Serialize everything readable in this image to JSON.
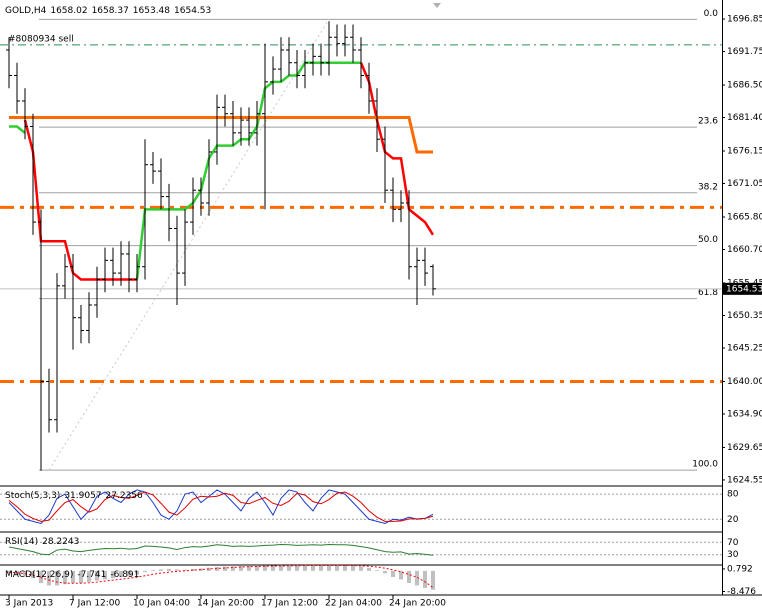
{
  "chart_data": [
    {
      "type": "ohlc",
      "symbol": "GOLD,H4",
      "open": [
        1692,
        1688,
        1684,
        1680,
        1665,
        1640,
        1634,
        1655,
        1658,
        1650,
        1648,
        1652,
        1656,
        1659,
        1657,
        1660,
        1656,
        1658,
        1674,
        1673,
        1669,
        1664,
        1657,
        1665,
        1670,
        1668,
        1676,
        1683,
        1682,
        1679,
        1681,
        1679,
        1682,
        1687,
        1689,
        1692,
        1690,
        1688,
        1690,
        1691,
        1690,
        1694,
        1693,
        1694,
        1692,
        1688,
        1684,
        1678,
        1670,
        1667,
        1668,
        1658,
        1659,
        1658.02
      ],
      "high": [
        1694,
        1690,
        1686,
        1682,
        1667,
        1642,
        1657,
        1660,
        1660,
        1652,
        1654,
        1658,
        1661,
        1661,
        1662,
        1662,
        1660,
        1678,
        1676,
        1675,
        1671,
        1666,
        1667,
        1672,
        1672,
        1678,
        1685,
        1685,
        1684,
        1683,
        1683,
        1684,
        1693,
        1691,
        1694,
        1694,
        1692,
        1692,
        1693,
        1693,
        1696.5,
        1696,
        1696,
        1696,
        1694,
        1690,
        1686,
        1680,
        1672,
        1670,
        1670,
        1661,
        1661,
        1658.37
      ],
      "low": [
        1686,
        1682,
        1678,
        1663,
        1626,
        1632,
        1632,
        1653,
        1645,
        1646,
        1646,
        1650,
        1654,
        1655,
        1655,
        1654,
        1654,
        1656,
        1671,
        1667,
        1662,
        1652,
        1655,
        1663,
        1666,
        1666,
        1674,
        1680,
        1677,
        1677,
        1677,
        1677,
        1667,
        1685,
        1687,
        1688,
        1686,
        1686,
        1688,
        1688,
        1688,
        1691,
        1691,
        1690,
        1686,
        1682,
        1676,
        1668,
        1665,
        1665,
        1656,
        1652,
        1655,
        1653.48
      ],
      "close": [
        1688,
        1684,
        1680,
        1665,
        1640,
        1634,
        1655,
        1658,
        1650,
        1648,
        1652,
        1656,
        1659,
        1657,
        1660,
        1656,
        1658,
        1674,
        1673,
        1669,
        1664,
        1657,
        1665,
        1670,
        1668,
        1676,
        1683,
        1682,
        1679,
        1681,
        1679,
        1682,
        1687,
        1689,
        1692,
        1690,
        1688,
        1690,
        1691,
        1690,
        1694,
        1693,
        1694,
        1692,
        1688,
        1684,
        1678,
        1670,
        1667,
        1668,
        1658,
        1659,
        1657,
        1654.53
      ],
      "bar_color": "#000000",
      "lines": [
        {
          "color": "#32cd32",
          "values": [
            1680,
            1680,
            1679,
            null,
            null,
            null,
            null,
            null,
            null,
            null,
            null,
            null,
            null,
            null,
            null,
            null,
            1656,
            1667,
            1667,
            1667,
            1667,
            1667,
            1667,
            1668,
            1670,
            1675,
            1677,
            1677,
            1677,
            1678,
            1678,
            1680,
            1686,
            1687,
            1687,
            1688,
            1688,
            1690,
            1690,
            1690,
            1690,
            1690,
            1690,
            1690,
            1690,
            null,
            null,
            null,
            null,
            null,
            null,
            null,
            null,
            null
          ]
        },
        {
          "color": "#ff0000",
          "values": [
            null,
            null,
            1681,
            1676,
            1662,
            1662,
            1662,
            1662,
            1657,
            1656,
            1656,
            1656,
            1656,
            1656,
            1656,
            1656,
            1656,
            null,
            null,
            null,
            null,
            null,
            null,
            null,
            null,
            null,
            null,
            null,
            null,
            null,
            null,
            null,
            null,
            null,
            null,
            null,
            null,
            null,
            null,
            null,
            null,
            null,
            null,
            null,
            1690,
            1687,
            1681,
            1676,
            1675,
            1675,
            1667,
            1666,
            1665,
            1663
          ]
        },
        {
          "color": "#ff6a00",
          "values": [
            1681.4,
            1681.4,
            1681.4,
            1681.4,
            1681.4,
            1681.4,
            1681.4,
            1681.4,
            1681.4,
            1681.4,
            1681.4,
            1681.4,
            1681.4,
            1681.4,
            1681.4,
            1681.4,
            1681.4,
            1681.4,
            1681.4,
            1681.4,
            1681.4,
            1681.4,
            1681.4,
            1681.4,
            1681.4,
            1681.4,
            1681.4,
            1681.4,
            1681.4,
            1681.4,
            1681.4,
            1681.4,
            1681.4,
            1681.4,
            1681.4,
            1681.4,
            1681.4,
            1681.4,
            1681.4,
            1681.4,
            1681.4,
            1681.4,
            1681.4,
            1681.4,
            1681.4,
            1681.4,
            1681.4,
            1681.4,
            1681.4,
            1681.4,
            1681.4,
            1676,
            1676,
            1676
          ]
        }
      ],
      "hlevels": [
        {
          "value": 1667.3,
          "color": "#ff6a00",
          "style": "dashdot"
        },
        {
          "value": 1640,
          "color": "#ff6a00",
          "style": "dashdot"
        },
        {
          "value": 1692.8,
          "color": "#2e8b57",
          "style": "thin-dashdot",
          "label": "#8080934 sell"
        }
      ],
      "fib": {
        "x": [
          5,
          40
        ],
        "color": "#a0a0a0",
        "levels": [
          {
            "label": "0.0",
            "price": 1696.8
          },
          {
            "label": "23.6",
            "price": 1679.9
          },
          {
            "label": "38.2",
            "price": 1669.6
          },
          {
            "label": "50.0",
            "price": 1661.3
          },
          {
            "label": "61.8",
            "price": 1653.0
          },
          {
            "label": "100.0",
            "price": 1626.1
          }
        ]
      },
      "ylim": [
        1623.6,
        1699.84
      ],
      "yticks": [
        1696.85,
        1691.75,
        {
          "value": 1686.5,
          "label": "1686.50"
        },
        {
          "value": 1681.4,
          "label": "1681.40"
        },
        1676.15,
        1671.05,
        {
          "value": 1665.8,
          "label": "1665.80"
        },
        {
          "value": 1660.7,
          "label": "1660.70"
        },
        1655.45,
        1650.35,
        1645.25,
        {
          "value": 1640,
          "label": "1640.00"
        },
        {
          "value": 1634.9,
          "label": "1634.90"
        },
        1629.65,
        1624.55
      ],
      "xticks": [
        {
          "value": 0,
          "label": "3 Jan 2013"
        },
        {
          "value": 8,
          "label": "7 Jan 12:00"
        },
        {
          "value": 16,
          "label": "10 Jan 04:00"
        },
        {
          "value": 24,
          "label": "14 Jan 20:00"
        },
        {
          "value": 32,
          "label": "17 Jan 12:00"
        },
        {
          "value": 40,
          "label": "22 Jan 04:00"
        },
        {
          "value": 48,
          "label": "24 Jan 20:00"
        }
      ],
      "grid": false
    },
    {
      "type": "line",
      "title": "Stoch(5,3,3)",
      "ylim": [
        -8,
        97
      ],
      "yticks": [
        80,
        20
      ],
      "series": [
        {
          "color": "#1e3cc8",
          "values": [
            60,
            40,
            20,
            15,
            10,
            30,
            70,
            80,
            50,
            20,
            40,
            75,
            85,
            70,
            60,
            80,
            90,
            85,
            60,
            30,
            20,
            40,
            80,
            85,
            60,
            75,
            90,
            80,
            60,
            40,
            70,
            85,
            60,
            30,
            70,
            90,
            85,
            60,
            40,
            70,
            90,
            85,
            80,
            60,
            40,
            20,
            15,
            10,
            20,
            18,
            25,
            20,
            22,
            31.9057
          ]
        },
        {
          "color": "#e00000",
          "values": [
            65,
            50,
            32,
            22,
            15,
            18,
            40,
            60,
            67,
            50,
            37,
            45,
            67,
            77,
            72,
            70,
            77,
            85,
            78,
            58,
            37,
            30,
            47,
            68,
            75,
            73,
            75,
            82,
            77,
            60,
            57,
            65,
            72,
            58,
            53,
            63,
            82,
            78,
            62,
            57,
            67,
            82,
            85,
            75,
            60,
            40,
            25,
            15,
            15,
            16,
            21,
            21,
            22,
            27.2356
          ]
        }
      ]
    },
    {
      "type": "line",
      "title": "RSI(14)",
      "ylim": [
        0,
        100
      ],
      "yticks": [
        70,
        30
      ],
      "series": [
        {
          "color": "#2e7d32",
          "values": [
            55,
            50,
            45,
            40,
            32,
            30,
            45,
            48,
            42,
            40,
            44,
            47,
            50,
            49,
            51,
            48,
            50,
            58,
            57,
            55,
            52,
            47,
            53,
            56,
            55,
            58,
            62,
            60,
            57,
            58,
            57,
            58,
            60,
            61,
            63,
            62,
            60,
            61,
            62,
            61,
            63,
            62,
            62,
            60,
            56,
            52,
            46,
            40,
            38,
            39,
            32,
            34,
            31,
            28.2243
          ]
        }
      ]
    },
    {
      "type": "macd",
      "title": "MACD(12,26,9)",
      "ylim": [
        -9.5,
        2
      ],
      "yticks": [
        0.792,
        -8.476
      ],
      "series": [
        {
          "color": "#c0c0c0",
          "values": [
            -1,
            -1.5,
            -2,
            -3,
            -5,
            -6,
            -6,
            -5.5,
            -5,
            -5,
            -4.5,
            -4,
            -3.5,
            -3,
            -2.5,
            -2,
            -1.5,
            -0.5,
            0.3,
            0.6,
            0.8,
            0.6,
            0.5,
            0.8,
            1,
            1.3,
            1.6,
            1.8,
            1.9,
            2,
            2,
            2,
            2.1,
            2.2,
            2.3,
            2.3,
            2.3,
            2.3,
            2.3,
            2.3,
            2.3,
            2.3,
            2.2,
            2.1,
            1.8,
            1.2,
            0.3,
            -1,
            -2.5,
            -3.5,
            -5,
            -6,
            -7,
            -7.741
          ]
        },
        {
          "color": "#ff0000",
          "values": [
            -0.5,
            -0.8,
            -1.2,
            -1.8,
            -2.8,
            -3.8,
            -4.6,
            -5,
            -5.1,
            -5.1,
            -4.9,
            -4.6,
            -4.2,
            -3.8,
            -3.4,
            -3,
            -2.6,
            -2,
            -1.4,
            -0.9,
            -0.5,
            -0.2,
            0,
            0.3,
            0.5,
            0.8,
            1,
            1.2,
            1.4,
            1.6,
            1.7,
            1.8,
            1.9,
            2,
            2,
            2.1,
            2.1,
            2.2,
            2.2,
            2.2,
            2.2,
            2.2,
            2.2,
            2.2,
            2.1,
            1.9,
            1.6,
            1.1,
            0.4,
            -0.4,
            -1.5,
            -2.6,
            -4.5,
            -6.891
          ]
        }
      ]
    }
  ]
}
